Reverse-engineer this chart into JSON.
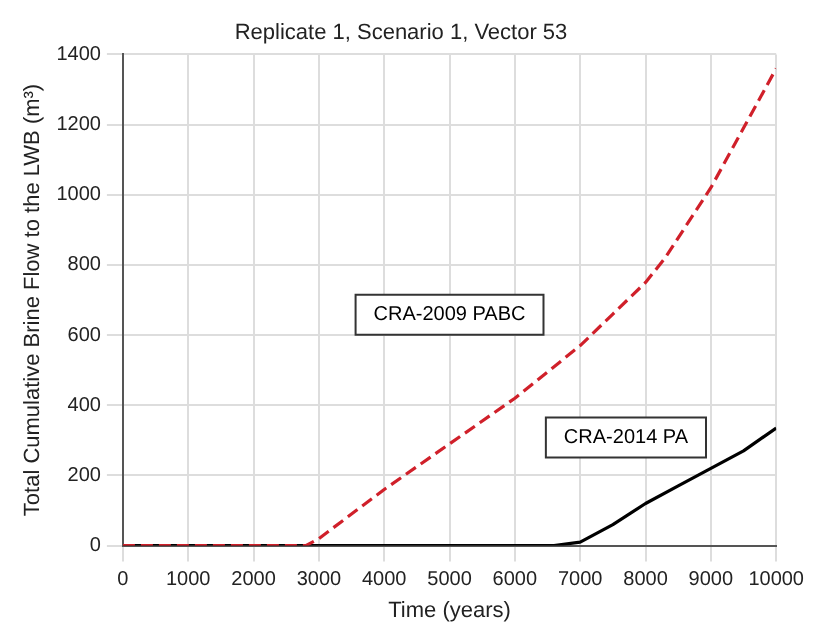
{
  "chart_data": {
    "type": "line",
    "title": "Replicate 1, Scenario 1, Vector 53",
    "xlabel": "Time (years)",
    "ylabel": "Total Cumulative Brine Flow to the LWB (m³)",
    "xlim": [
      0,
      10000
    ],
    "xticks": [
      0,
      1000,
      2000,
      3000,
      4000,
      5000,
      6000,
      7000,
      8000,
      9000,
      10000
    ],
    "ylim": [
      0,
      1400
    ],
    "yticks": [
      0,
      200,
      400,
      600,
      800,
      1000,
      1200,
      1400
    ],
    "grid": true,
    "legend": false,
    "marker": "none",
    "series": [
      {
        "name": "CRA-2009 PABC",
        "color": "#d0202a",
        "line_style": "dashed",
        "x": [
          0,
          2800,
          3000,
          4000,
          5000,
          6000,
          7000,
          7500,
          8000,
          8300,
          9000,
          9500,
          10000
        ],
        "values": [
          0,
          0,
          20,
          160,
          290,
          420,
          570,
          660,
          750,
          820,
          1020,
          1190,
          1360
        ]
      },
      {
        "name": "CRA-2014 PA",
        "color": "#000000",
        "line_style": "solid",
        "x": [
          0,
          6600,
          7000,
          7500,
          8000,
          8500,
          9000,
          9500,
          10000
        ],
        "values": [
          0,
          0,
          10,
          60,
          120,
          170,
          220,
          270,
          335
        ]
      }
    ]
  }
}
